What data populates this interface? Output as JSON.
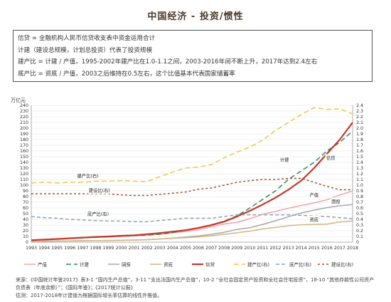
{
  "title": "中国经济 - 投资/惯性",
  "notes": [
    "信贷 = 全融机构人民币信贷收支表中资金运用合计",
    "计建（建设总规模，计划总投资）代表了投资规模",
    "建产比 = 计建 / 产值，1995-2002年建产比在1.0-1.1之间，2003-2016年间不断上升，2017年达到2.4左右",
    "底产比 = 资底 / 产值，2003之后维持在0.5左右，这个比值基本代表国家储蓄率"
  ],
  "source": {
    "line1": "来源：《中国统计年鉴2017》表3-1 “国内生产总值”，3-11 “支出法国内生产总值”，10-2 “全社会固定资产投资和全社会住宅投资”，18-10 “其他存款性公司资产负债表（年底余额）”；《国际年鉴》；《2017统计公报》",
    "line2": "估测：2017-2018年计建值为根据国际增长率估算的线性外推值。"
  },
  "chart_data": {
    "type": "line",
    "x": [
      1993,
      1994,
      1995,
      1996,
      1997,
      1998,
      1999,
      2000,
      2001,
      2002,
      2003,
      2004,
      2005,
      2006,
      2007,
      2008,
      2009,
      2010,
      2011,
      2012,
      2013,
      2014,
      2015,
      2016,
      2017,
      2018
    ],
    "x_tick_labels": [
      "1993",
      "1994",
      "1995",
      "1996",
      "1997",
      "1998",
      "1999",
      "2000",
      "2001",
      "2002",
      "2003",
      "2004",
      "2005",
      "2006",
      "2007",
      "2008",
      "2009",
      "2010",
      "2011",
      "2012",
      "2013",
      "2014",
      "2015",
      "2016",
      "2017",
      "2018"
    ],
    "y_left": {
      "label": "万亿元",
      "lim": [
        0,
        240
      ],
      "ticks": [
        0,
        10,
        20,
        30,
        40,
        50,
        60,
        70,
        80,
        90,
        100,
        110,
        120,
        130,
        140,
        150,
        160,
        170,
        180,
        190,
        200,
        210,
        220,
        230,
        240
      ]
    },
    "y_right": {
      "lim": [
        0,
        2.4
      ],
      "ticks": [
        "0",
        "0.1",
        "0.2",
        "0.3",
        "0.4",
        "0.5",
        "0.6",
        "0.7",
        "0.8",
        "0.9",
        "1.0",
        "1.1",
        "1.2",
        "1.3",
        "1.4",
        "1.5",
        "1.6",
        "1.7",
        "1.8",
        "1.9",
        "2.0",
        "2.1",
        "2.2",
        "2.3",
        "2.4"
      ]
    },
    "grid": true,
    "legend_position": "bottom",
    "series": [
      {
        "name": "产值",
        "axis": "left",
        "color": "#f4a3a8",
        "dash": "",
        "width": 1.5,
        "values": [
          3.5,
          4.8,
          6.1,
          7.2,
          7.9,
          8.5,
          9.1,
          10.0,
          11.1,
          12.2,
          13.7,
          16.2,
          18.7,
          21.9,
          27.0,
          31.9,
          34.9,
          41.3,
          48.9,
          54.0,
          59.5,
          64.4,
          68.9,
          74.4,
          82.7,
          90.0
        ]
      },
      {
        "name": "计建",
        "axis": "left",
        "color": "#2e8b57",
        "dash": "7,4",
        "width": 1.5,
        "values": [
          3.5,
          4.5,
          5.5,
          6.5,
          7.5,
          8.5,
          9.5,
          10.5,
          11.5,
          12.5,
          14.0,
          17.0,
          21.0,
          25.0,
          30.0,
          37.0,
          46.0,
          60.0,
          75.0,
          90.0,
          110.0,
          125.0,
          140.0,
          160.0,
          175.0,
          195.0
        ]
      },
      {
        "name": "固投",
        "axis": "left",
        "color": "#a8a8a8",
        "dash": "",
        "width": 1.5,
        "values": [
          1.3,
          1.7,
          2.0,
          2.3,
          2.5,
          2.8,
          3.0,
          3.3,
          3.7,
          4.3,
          5.5,
          7.0,
          8.9,
          11.0,
          13.7,
          17.3,
          22.5,
          25.2,
          31.1,
          37.5,
          44.6,
          51.2,
          56.2,
          60.6,
          64.1,
          66.0
        ]
      },
      {
        "name": "资底",
        "axis": "left",
        "color": "#d4b483",
        "dash": "",
        "width": 1.5,
        "values": [
          1.3,
          1.7,
          2.0,
          2.3,
          2.6,
          2.7,
          2.9,
          3.3,
          3.8,
          4.5,
          5.6,
          6.9,
          7.8,
          9.3,
          11.2,
          13.8,
          16.4,
          19.4,
          23.2,
          25.9,
          28.8,
          30.6,
          31.3,
          31.7,
          35.5,
          37.0
        ]
      },
      {
        "name": "信贷",
        "axis": "left",
        "color": "#c0392b",
        "dash": "",
        "width": 2.2,
        "values": [
          3.5,
          4.5,
          5.5,
          6.8,
          8.0,
          9.3,
          10.0,
          11.2,
          12.0,
          14.0,
          16.0,
          18.5,
          21.0,
          25.0,
          30.0,
          36.0,
          45.0,
          55.0,
          66.0,
          78.0,
          92.0,
          108.0,
          130.0,
          155.0,
          180.0,
          210.0
        ]
      },
      {
        "name": "建产比(右)",
        "axis": "right",
        "color": "#e8c84a",
        "dash": "7,4",
        "width": 1.5,
        "values": [
          1.04,
          1.05,
          1.04,
          1.05,
          1.05,
          1.07,
          1.07,
          1.08,
          1.07,
          1.06,
          1.15,
          1.23,
          1.3,
          1.32,
          1.36,
          1.48,
          1.58,
          1.67,
          1.79,
          1.96,
          2.1,
          2.24,
          2.36,
          2.33,
          2.34,
          2.25
        ]
      },
      {
        "name": "底产比(右)",
        "axis": "right",
        "color": "#8fa3b8",
        "dash": "5,3",
        "width": 1.5,
        "values": [
          0.45,
          0.43,
          0.42,
          0.4,
          0.39,
          0.38,
          0.37,
          0.37,
          0.36,
          0.36,
          0.38,
          0.4,
          0.42,
          0.42,
          0.42,
          0.45,
          0.48,
          0.48,
          0.48,
          0.48,
          0.48,
          0.47,
          0.46,
          0.45,
          0.43,
          0.41
        ]
      },
      {
        "name": "建设比(右)",
        "axis": "right",
        "color": "#a0522d",
        "dash": "3,3",
        "width": 1.5,
        "values": [
          0.85,
          0.85,
          0.85,
          0.85,
          0.85,
          0.85,
          0.85,
          0.83,
          0.82,
          0.82,
          0.84,
          0.86,
          0.88,
          0.93,
          0.95,
          1.0,
          1.05,
          1.08,
          1.1,
          1.1,
          1.12,
          1.12,
          1.05,
          0.98,
          0.92,
          0.92
        ]
      }
    ],
    "legend": [
      {
        "name": "产值"
      },
      {
        "name": "计建"
      },
      {
        "name": "固投"
      },
      {
        "name": "资底"
      },
      {
        "name": "信贷"
      },
      {
        "name": "建产比(右)"
      },
      {
        "name": "底产比(右)"
      },
      {
        "name": "建设比(右)"
      }
    ],
    "annotations": [
      {
        "text": "计建",
        "x": 2012.7,
        "y": 142,
        "axis": "left"
      },
      {
        "text": "信贷",
        "x": 2016.3,
        "y": 145,
        "axis": "left"
      },
      {
        "text": "建产比(右)",
        "x": 1997.4,
        "y": 1.14,
        "axis": "right"
      },
      {
        "text": "建设比(右)",
        "x": 1998.3,
        "y": 0.88,
        "axis": "right"
      },
      {
        "text": "底产比(右)",
        "x": 1998.2,
        "y": 0.47,
        "axis": "right"
      },
      {
        "text": "产值",
        "x": 2015.0,
        "y": 80,
        "axis": "left"
      },
      {
        "text": "固投",
        "x": 2016.7,
        "y": 69,
        "axis": "left"
      },
      {
        "text": "资底",
        "x": 2015.0,
        "y": 37,
        "axis": "left"
      }
    ]
  }
}
